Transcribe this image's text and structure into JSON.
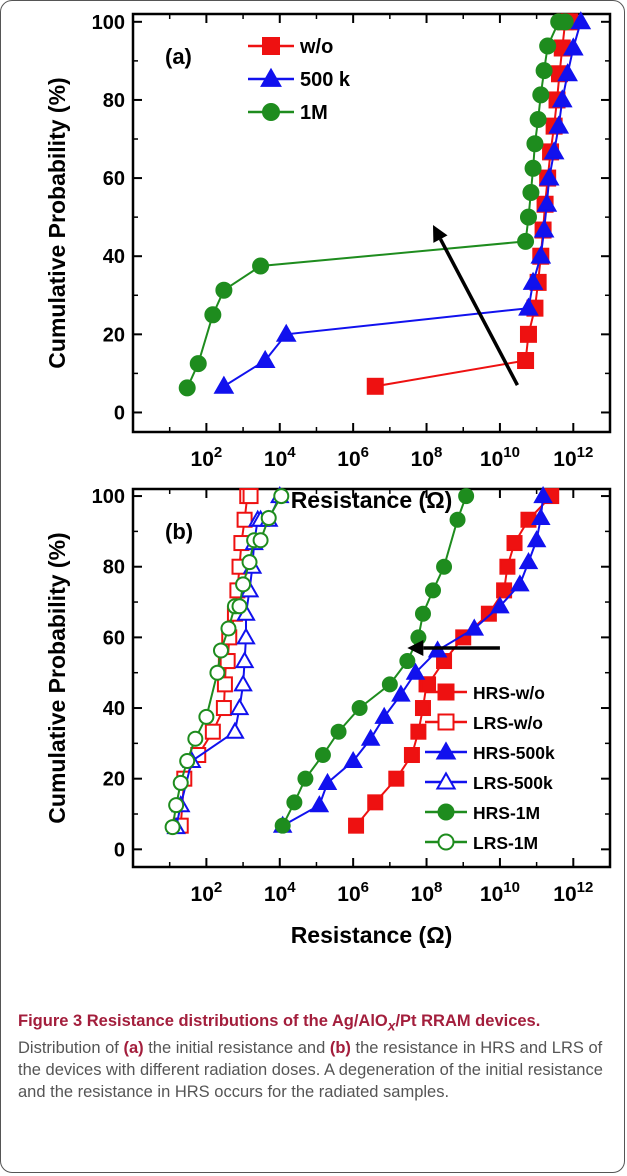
{
  "chart_data": [
    {
      "type": "line",
      "panel_label": "(a)",
      "xlabel": "Resistance (Ω)",
      "ylabel": "Cumulative Probability (%)",
      "x_scale": "log",
      "xlim": [
        1,
        10000000000000
      ],
      "ylim": [
        -5,
        102
      ],
      "x_tick_values": [
        100,
        10000,
        1000000,
        100000000,
        10000000000,
        1000000000000
      ],
      "x_tick_labels": [
        [
          "10",
          "2"
        ],
        [
          "10",
          "4"
        ],
        [
          "10",
          "6"
        ],
        [
          "10",
          "8"
        ],
        [
          "10",
          "10"
        ],
        [
          "10",
          "12"
        ]
      ],
      "y_ticks": [
        0,
        20,
        40,
        60,
        80,
        100
      ],
      "legend": "top-left",
      "series": [
        {
          "name": "w/o",
          "color": "#ee1111",
          "marker": "square",
          "filled": true,
          "x": [
            4000000.0,
            50000000000.0,
            60000000000.0,
            90000000000.0,
            110000000000.0,
            130000000000.0,
            150000000000.0,
            170000000000.0,
            200000000000.0,
            240000000000.0,
            300000000000.0,
            360000000000.0,
            420000000000.0,
            500000000000.0,
            600000000000.0,
            800000000000.0
          ],
          "y": [
            6.7,
            13.3,
            20,
            26.7,
            33.3,
            40,
            46.7,
            53.3,
            60,
            66.7,
            73.3,
            80,
            86.7,
            93.3,
            100,
            100
          ]
        },
        {
          "name": "500 k",
          "color": "#1111ee",
          "marker": "triangle",
          "filled": true,
          "x": [
            300,
            4000,
            15000,
            60000000000.0,
            80000000000.0,
            130000000000.0,
            160000000000.0,
            190000000000.0,
            220000000000.0,
            300000000000.0,
            400000000000.0,
            500000000000.0,
            700000000000.0,
            1000000000000.0,
            1600000000000.0
          ],
          "y": [
            6.7,
            13.3,
            20,
            26.7,
            33.3,
            40,
            46.7,
            53.3,
            60,
            66.7,
            73.3,
            80,
            86.7,
            93.3,
            100
          ]
        },
        {
          "name": "1M",
          "color": "#1e8c1e",
          "marker": "circle",
          "filled": true,
          "x": [
            30,
            60,
            150,
            300,
            3000,
            50000000000.0,
            60000000000.0,
            70000000000.0,
            80000000000.0,
            90000000000.0,
            110000000000.0,
            130000000000.0,
            160000000000.0,
            200000000000.0,
            400000000000.0,
            600000000000.0
          ],
          "y": [
            6.3,
            12.5,
            25,
            31.3,
            37.5,
            43.8,
            50,
            56.3,
            62.5,
            68.8,
            75,
            81.3,
            87.5,
            93.8,
            100,
            100
          ]
        }
      ],
      "arrow": {
        "from": [
          30000000000.0,
          7
        ],
        "to": [
          150000000,
          48
        ]
      }
    },
    {
      "type": "line",
      "panel_label": "(b)",
      "xlabel": "Resistance (Ω)",
      "ylabel": "Cumulative Probability (%)",
      "x_scale": "log",
      "xlim": [
        1,
        10000000000000
      ],
      "ylim": [
        -5,
        102
      ],
      "x_tick_values": [
        100,
        10000,
        1000000,
        100000000,
        10000000000,
        1000000000000
      ],
      "x_tick_labels": [
        [
          "10",
          "2"
        ],
        [
          "10",
          "4"
        ],
        [
          "10",
          "6"
        ],
        [
          "10",
          "8"
        ],
        [
          "10",
          "10"
        ],
        [
          "10",
          "12"
        ]
      ],
      "y_ticks": [
        0,
        20,
        40,
        60,
        80,
        100
      ],
      "legend": "bottom-right",
      "series": [
        {
          "name": "HRS-w/o",
          "color": "#ee1111",
          "marker": "square",
          "filled": true,
          "x": [
            1200000.0,
            4000000.0,
            15000000.0,
            40000000.0,
            60000000.0,
            80000000.0,
            100000000.0,
            110000000.0,
            300000000.0,
            1000000000.0,
            5000000000.0,
            13000000000.0,
            16000000000.0,
            25000000000.0,
            60000000000.0,
            250000000000.0
          ],
          "y": [
            6.7,
            13.3,
            20,
            26.7,
            33.3,
            40,
            46.7,
            46.7,
            53.3,
            60,
            66.7,
            73.3,
            80,
            86.7,
            93.3,
            100
          ]
        },
        {
          "name": "LRS-w/o",
          "color": "#ee1111",
          "marker": "square",
          "filled": false,
          "x": [
            20,
            25,
            60,
            150,
            300,
            320,
            340,
            380,
            420,
            600,
            700,
            800,
            900,
            1100,
            1300,
            1600
          ],
          "y": [
            6.7,
            20,
            26.7,
            33.3,
            40,
            46.7,
            53.3,
            53.3,
            60,
            66.7,
            73.3,
            80,
            86.7,
            93.3,
            100,
            100
          ]
        },
        {
          "name": "HRS-500k",
          "color": "#1111ee",
          "marker": "triangle",
          "filled": true,
          "x": [
            12000,
            120000,
            200000,
            1000000.0,
            3000000.0,
            7000000.0,
            20000000.0,
            50000000.0,
            200000000.0,
            2000000000.0,
            10000000000.0,
            35000000000.0,
            60000000000.0,
            100000000000.0,
            130000000000.0,
            150000000000.0
          ],
          "y": [
            6.7,
            12.5,
            18.8,
            25,
            31.3,
            37.5,
            43.8,
            50,
            56.3,
            62.5,
            68.8,
            75,
            81.3,
            87.5,
            93.8,
            100
          ]
        },
        {
          "name": "LRS-500k",
          "color": "#1111ee",
          "marker": "triangle",
          "filled": false,
          "x": [
            15,
            20,
            40,
            600,
            800,
            1000,
            1100,
            1200,
            1200,
            1500,
            1800,
            2000,
            2500,
            3000,
            5000,
            10000
          ],
          "y": [
            6.3,
            12.5,
            25,
            33.3,
            40,
            46.7,
            53.3,
            60,
            66.7,
            73.3,
            80,
            86.7,
            93.3,
            93.3,
            93.3,
            100
          ]
        },
        {
          "name": "HRS-1M",
          "color": "#1e8c1e",
          "marker": "circle",
          "filled": true,
          "x": [
            12000,
            25000,
            50000,
            150000,
            400000,
            1500000.0,
            10000000.0,
            30000000.0,
            60000000.0,
            80000000.0,
            150000000.0,
            300000000.0,
            700000000.0,
            1200000000.0
          ],
          "y": [
            6.7,
            13.3,
            20,
            26.7,
            33.3,
            40,
            46.7,
            53.3,
            60,
            66.7,
            73.3,
            80,
            93.3,
            100
          ]
        },
        {
          "name": "LRS-1M",
          "color": "#1e8c1e",
          "marker": "circle",
          "filled": false,
          "x": [
            12,
            15,
            20,
            30,
            50,
            100,
            200,
            250,
            400,
            600,
            800,
            1000,
            1500,
            2000,
            3000,
            5000,
            11000
          ],
          "y": [
            6.3,
            12.5,
            18.8,
            25,
            31.3,
            37.5,
            50,
            56.3,
            62.5,
            68.8,
            68.8,
            75,
            81.3,
            87.5,
            87.5,
            93.8,
            100
          ]
        }
      ],
      "arrow": {
        "from": [
          10000000000.0,
          57
        ],
        "to": [
          30000000.0,
          57
        ]
      }
    }
  ],
  "caption": {
    "title": "Figure 3 Resistance distributions of the Ag/AlO",
    "title_sub": "x",
    "title_rest": "/Pt RRAM devices.",
    "body_1": " Distribution of ",
    "ref_a": "(a)",
    "body_2": " the initial resistance and ",
    "ref_b": "(b)",
    "body_3": " the resistance in HRS and LRS of the devices with different radiation doses. A degeneration of the initial resistance and the resistance in HRS occurs for the radiated samples."
  }
}
